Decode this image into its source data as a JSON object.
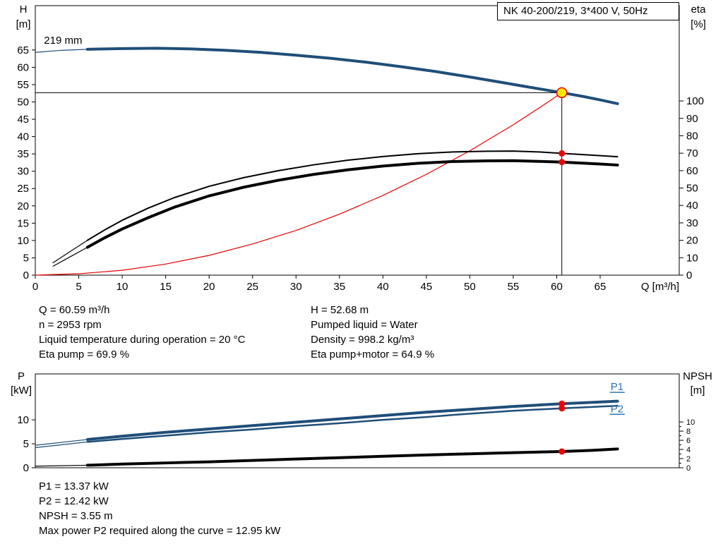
{
  "colors": {
    "curve_blue": "#1f4e79",
    "label_blue": "#2e74b5",
    "curve_black": "#000000",
    "curve_red": "#e60000",
    "marker_red": "#ee0000",
    "marker_yellow_fill": "#ffe600",
    "marker_yellow_stroke": "#e60000",
    "axis": "#000000"
  },
  "info_top": {
    "left": [
      "Q = 60.59 m³/h",
      "n = 2953 rpm",
      "Liquid temperature during operation = 20 °C",
      "Eta pump = 69.9 %"
    ],
    "right": [
      "H = 52.68 m",
      "Pumped liquid = Water",
      "Density = 998.2 kg/m³",
      "Eta pump+motor = 64.9 %"
    ]
  },
  "info_bottom": [
    "P1 = 13.37 kW",
    "P2 = 12.42 kW",
    "NPSH = 3.55 m",
    "Max power P2 required along the curve = 12.95 kW"
  ],
  "chart_data": [
    {
      "type": "line",
      "name": "qh-efficiency-chart",
      "title": "NK 40-200/219, 3*400 V, 50Hz",
      "x_axis": {
        "label": "Q [m³/h]",
        "min": 0,
        "max": 74.1,
        "ticks": [
          0,
          5,
          10,
          15,
          20,
          25,
          30,
          35,
          40,
          45,
          50,
          55,
          60,
          65
        ]
      },
      "y_left": {
        "label": "H",
        "unit": "[m]",
        "min": 0,
        "max": 77.8,
        "ticks": [
          0,
          5,
          10,
          15,
          20,
          25,
          30,
          35,
          40,
          45,
          50,
          55,
          60,
          65
        ]
      },
      "y_right": {
        "label": "eta",
        "unit": "[%]",
        "min": 0,
        "max": 154.7,
        "ticks": [
          0,
          10,
          20,
          30,
          40,
          50,
          60,
          70,
          80,
          90,
          100
        ]
      },
      "series": [
        {
          "name": "pump-curve-219mm",
          "axis": "left",
          "color_key": "curve_blue",
          "width": 4,
          "thin_until": 6,
          "points": [
            [
              0,
              64.3
            ],
            [
              3,
              64.9
            ],
            [
              6,
              65.2
            ],
            [
              10,
              65.4
            ],
            [
              14,
              65.5
            ],
            [
              18,
              65.3
            ],
            [
              22,
              64.9
            ],
            [
              26,
              64.3
            ],
            [
              30,
              63.5
            ],
            [
              34,
              62.6
            ],
            [
              38,
              61.5
            ],
            [
              42,
              60.2
            ],
            [
              46,
              58.8
            ],
            [
              50,
              57.2
            ],
            [
              54,
              55.5
            ],
            [
              57,
              54.2
            ],
            [
              60.59,
              52.68
            ],
            [
              63,
              51.6
            ],
            [
              65,
              50.6
            ],
            [
              67,
              49.5
            ]
          ]
        },
        {
          "name": "system-curve",
          "axis": "left",
          "color_key": "curve_red",
          "width": 1.2,
          "points": [
            [
              0,
              0
            ],
            [
              5,
              0.4
            ],
            [
              10,
              1.4
            ],
            [
              15,
              3.2
            ],
            [
              20,
              5.7
            ],
            [
              25,
              9.0
            ],
            [
              30,
              12.9
            ],
            [
              35,
              17.6
            ],
            [
              40,
              23.0
            ],
            [
              45,
              29.1
            ],
            [
              50,
              35.9
            ],
            [
              55,
              43.4
            ],
            [
              58,
              48.3
            ],
            [
              60.59,
              52.68
            ]
          ]
        },
        {
          "name": "eta-pump-curve",
          "axis": "right",
          "color_key": "curve_black",
          "width": 2,
          "thin_until": 6,
          "points": [
            [
              2,
              7
            ],
            [
              4,
              13.5
            ],
            [
              6,
              20
            ],
            [
              8,
              26
            ],
            [
              10,
              31.5
            ],
            [
              13,
              38.5
            ],
            [
              16,
              44.5
            ],
            [
              20,
              51
            ],
            [
              24,
              56
            ],
            [
              28,
              60
            ],
            [
              32,
              63.3
            ],
            [
              36,
              66
            ],
            [
              40,
              68.1
            ],
            [
              44,
              69.7
            ],
            [
              48,
              70.7
            ],
            [
              52,
              71.1
            ],
            [
              55,
              71.2
            ],
            [
              58,
              70.7
            ],
            [
              60.59,
              69.9
            ],
            [
              63,
              69.2
            ],
            [
              65,
              68.6
            ],
            [
              67,
              68.0
            ]
          ]
        },
        {
          "name": "eta-pump-motor-curve",
          "axis": "right",
          "color_key": "curve_black",
          "width": 4,
          "thin_until": 6,
          "points": [
            [
              2,
              5
            ],
            [
              4,
              10.5
            ],
            [
              6,
              16
            ],
            [
              8,
              21.5
            ],
            [
              10,
              26.5
            ],
            [
              13,
              33
            ],
            [
              16,
              39
            ],
            [
              20,
              45.5
            ],
            [
              24,
              50.5
            ],
            [
              28,
              54.5
            ],
            [
              32,
              57.8
            ],
            [
              36,
              60.5
            ],
            [
              40,
              62.6
            ],
            [
              44,
              64.2
            ],
            [
              48,
              65.2
            ],
            [
              52,
              65.6
            ],
            [
              55,
              65.7
            ],
            [
              58,
              65.3
            ],
            [
              60.59,
              64.9
            ],
            [
              63,
              64.3
            ],
            [
              65,
              63.8
            ],
            [
              67,
              63.2
            ]
          ]
        }
      ],
      "duty": {
        "q": 60.59,
        "h": 52.68,
        "markers": [
          {
            "axis": "right",
            "value": 69.9
          },
          {
            "axis": "right",
            "value": 64.9
          }
        ]
      },
      "annotations": [
        {
          "text": "219 mm",
          "q": 1.0,
          "axis": "left",
          "value": 66.8,
          "color_key": "axis",
          "size": 15
        }
      ]
    },
    {
      "type": "line",
      "name": "power-npsh-chart",
      "title": "",
      "x_axis": {
        "label": "",
        "min": 0,
        "max": 74.1,
        "ticks": []
      },
      "y_left": {
        "label": "P",
        "unit": "[kW]",
        "min": 0,
        "max": 19.6,
        "ticks": [
          0,
          5,
          10
        ]
      },
      "y_right": {
        "label": "NPSH",
        "unit": "[m]",
        "min": 0,
        "max": 20.5,
        "ticks": [
          0,
          2,
          4,
          6,
          8,
          10
        ],
        "minor_ticks": [
          1,
          3,
          5,
          7,
          9
        ]
      },
      "series": [
        {
          "name": "p1-curve",
          "axis": "left",
          "color_key": "curve_blue",
          "width": 4,
          "thin_until": 6,
          "points": [
            [
              0,
              4.7
            ],
            [
              6,
              5.9
            ],
            [
              10,
              6.6
            ],
            [
              15,
              7.4
            ],
            [
              20,
              8.1
            ],
            [
              25,
              8.8
            ],
            [
              30,
              9.5
            ],
            [
              35,
              10.2
            ],
            [
              40,
              10.9
            ],
            [
              45,
              11.6
            ],
            [
              50,
              12.2
            ],
            [
              55,
              12.8
            ],
            [
              60.59,
              13.37
            ],
            [
              64,
              13.65
            ],
            [
              67,
              13.9
            ]
          ]
        },
        {
          "name": "p2-curve",
          "axis": "left",
          "color_key": "curve_blue",
          "width": 2.5,
          "thin_until": 6,
          "points": [
            [
              0,
              4.2
            ],
            [
              6,
              5.4
            ],
            [
              10,
              6.0
            ],
            [
              15,
              6.7
            ],
            [
              20,
              7.4
            ],
            [
              25,
              8.0
            ],
            [
              30,
              8.7
            ],
            [
              35,
              9.3
            ],
            [
              40,
              10.0
            ],
            [
              45,
              10.6
            ],
            [
              50,
              11.3
            ],
            [
              55,
              11.9
            ],
            [
              60.59,
              12.42
            ],
            [
              64,
              12.7
            ],
            [
              67,
              12.95
            ]
          ]
        },
        {
          "name": "npsh-curve",
          "axis": "right",
          "color_key": "curve_black",
          "width": 4,
          "thin_until": 6,
          "points": [
            [
              0,
              0.35
            ],
            [
              6,
              0.55
            ],
            [
              10,
              0.8
            ],
            [
              15,
              1.05
            ],
            [
              20,
              1.3
            ],
            [
              25,
              1.6
            ],
            [
              30,
              1.9
            ],
            [
              35,
              2.2
            ],
            [
              40,
              2.5
            ],
            [
              45,
              2.8
            ],
            [
              50,
              3.05
            ],
            [
              55,
              3.3
            ],
            [
              60.59,
              3.55
            ],
            [
              64,
              3.8
            ],
            [
              67,
              4.1
            ]
          ]
        }
      ],
      "markers": [
        {
          "q": 60.59,
          "axis": "left",
          "value": 13.37
        },
        {
          "q": 60.59,
          "axis": "left",
          "value": 12.42
        },
        {
          "q": 60.59,
          "axis": "right",
          "value": 3.55
        }
      ],
      "annotations": [
        {
          "text": "P1",
          "q": 66.2,
          "axis": "left",
          "value": 16.2,
          "color_key": "label_blue",
          "size": 15,
          "underline": true
        },
        {
          "text": "P2",
          "q": 66.2,
          "axis": "left",
          "value": 11.6,
          "color_key": "label_blue",
          "size": 15,
          "underline": true
        }
      ]
    }
  ]
}
